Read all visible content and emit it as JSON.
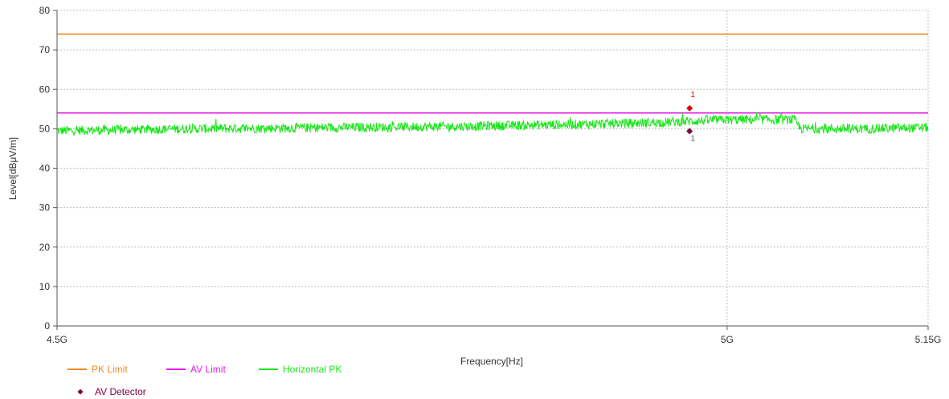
{
  "chart_data": {
    "type": "line",
    "xlabel": "Frequency[Hz]",
    "ylabel": "Level[dBμV/m]",
    "x_ticks": [
      {
        "value": 4500000000.0,
        "label": "4.5G"
      },
      {
        "value": 5000000000.0,
        "label": "5G"
      },
      {
        "value": 5150000000.0,
        "label": "5.15G"
      }
    ],
    "xlim": [
      4500000000.0,
      5150000000.0
    ],
    "ylim": [
      0,
      80
    ],
    "y_ticks": [
      0,
      10,
      20,
      30,
      40,
      50,
      60,
      70,
      80
    ],
    "grid": true,
    "legend_position": "bottom-left",
    "series": [
      {
        "name": "PK Limit",
        "kind": "hline",
        "color": "#f08a24",
        "x": [
          4500000000.0,
          5150000000.0
        ],
        "values": [
          74,
          74
        ]
      },
      {
        "name": "AV Limit",
        "kind": "hline",
        "color": "#e619e6",
        "x": [
          4500000000.0,
          5150000000.0
        ],
        "values": [
          54,
          54
        ]
      },
      {
        "name": "Horizontal PK",
        "kind": "noise",
        "color": "#19e619",
        "x": [
          4500000000.0,
          4600000000.0,
          4700000000.0,
          4800000000.0,
          4900000000.0,
          4950000000.0,
          4980000000.0,
          5000000000.0,
          5050000000.0,
          5055000000.0,
          5100000000.0,
          5150000000.0
        ],
        "values": [
          49.5,
          50.0,
          50.3,
          50.6,
          51.2,
          51.6,
          52.0,
          52.3,
          52.3,
          50.0,
          50.0,
          50.3
        ]
      },
      {
        "name": "",
        "kind": "markers",
        "color": "#e00000",
        "x": [
          4972000000.0
        ],
        "values": [
          55.2
        ],
        "labels": [
          "1"
        ],
        "label_side": "above"
      },
      {
        "name": "AV Detector",
        "kind": "markers",
        "color": "#800040",
        "x": [
          4972000000.0
        ],
        "values": [
          49.4
        ],
        "labels": [
          "1"
        ],
        "label_side": "below"
      }
    ]
  },
  "legend": {
    "items": [
      {
        "label": "PK Limit",
        "color": "#f08a24",
        "symbol": "line"
      },
      {
        "label": "AV Limit",
        "color": "#e619e6",
        "symbol": "line"
      },
      {
        "label": "Horizontal PK",
        "color": "#19e619",
        "symbol": "line"
      },
      {
        "label": "AV Detector",
        "color": "#800040",
        "symbol": "diamond"
      }
    ]
  }
}
